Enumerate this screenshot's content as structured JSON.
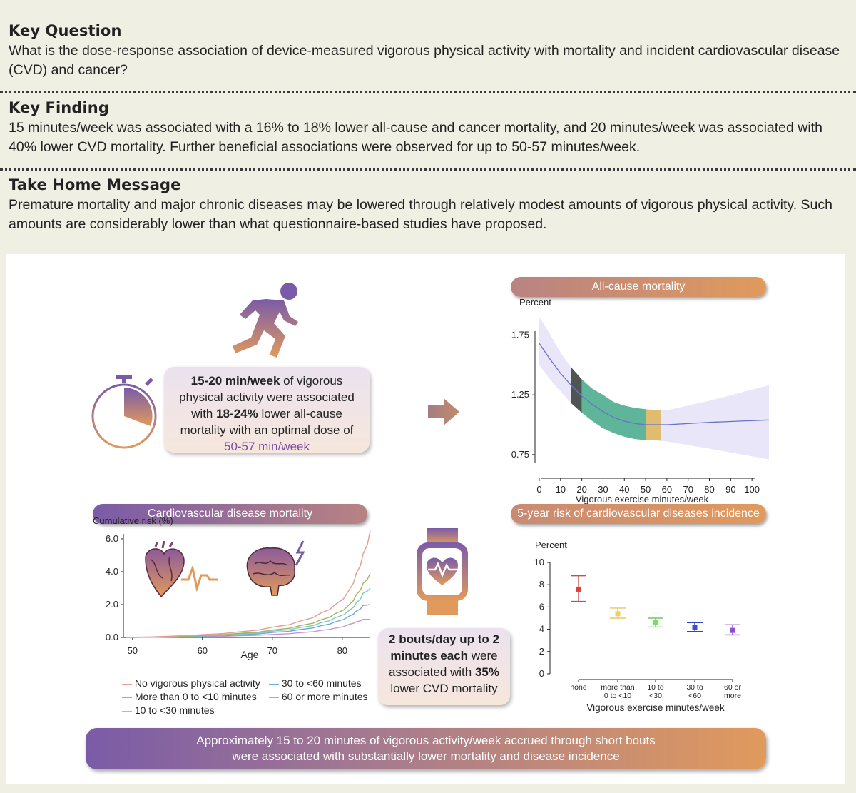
{
  "key_question": {
    "heading": "Key Question",
    "text": "What is the dose-response association of device-measured vigorous physical activity with mortality and incident cardiovascular disease (CVD) and cancer?"
  },
  "key_finding": {
    "heading": "Key Finding",
    "text": "15 minutes/week was associated with a 16% to 18% lower all-cause and cancer mortality, and 20 minutes/week was associated with 40% lower CVD mortality. Further beneficial associations were observed for up to 50-57 minutes/week."
  },
  "take_home": {
    "heading": "Take Home Message",
    "text": "Premature mortality and major chronic diseases may be lowered through relatively modest amounts of vigorous physical activity. Such amounts are considerably lower than what questionnaire-based studies have proposed."
  },
  "summary_box": {
    "p1": "15-20 min/week",
    "p2": " of vigorous physical activity were associated with ",
    "p3": "18-24%",
    "p4": " lower all-cause mortality with an optimal dose of ",
    "p5": "50-57 min/week"
  },
  "bouts_box": {
    "p1": "2 bouts/day up to 2 minutes each",
    "p2": " were associated with ",
    "p3": "35%",
    "p4": " lower CVD mortality"
  },
  "bottom_message": {
    "line1": "Approximately 15 to 20 minutes of vigorous activity/week accrued through short bouts",
    "line2": "were associated with substantially lower mortality and disease incidence"
  },
  "colors": {
    "purple": "#7a5ba7",
    "orange": "#e19a5c",
    "green": "#5fb59a",
    "gold": "#e0bc6f",
    "dark": "#4e5553",
    "band": "#e8e6f8"
  },
  "chart_data": [
    {
      "type": "line",
      "title": "All-cause mortality",
      "ylabel": "Percent",
      "xlabel": "Vigorous exercise minutes/week",
      "x_ticks": [
        0,
        10,
        20,
        30,
        40,
        50,
        60,
        70,
        80,
        90,
        100
      ],
      "y_ticks": [
        "0.75",
        "1.25",
        "1.75"
      ],
      "xlim": [
        0,
        108
      ],
      "ylim": [
        0.6,
        1.95
      ],
      "series": [
        {
          "name": "estimate",
          "x": [
            0,
            5,
            10,
            15,
            20,
            25,
            30,
            35,
            40,
            45,
            50,
            55,
            60,
            80,
            108
          ],
          "values": [
            1.68,
            1.55,
            1.43,
            1.33,
            1.24,
            1.17,
            1.11,
            1.06,
            1.03,
            1.01,
            1.0,
            1.0,
            1.0,
            1.02,
            1.04
          ],
          "lower": [
            1.5,
            1.38,
            1.28,
            1.18,
            1.1,
            1.03,
            0.97,
            0.93,
            0.9,
            0.88,
            0.87,
            0.87,
            0.86,
            0.8,
            0.71
          ],
          "upper": [
            1.9,
            1.76,
            1.6,
            1.48,
            1.38,
            1.3,
            1.25,
            1.19,
            1.16,
            1.14,
            1.13,
            1.12,
            1.12,
            1.2,
            1.33
          ]
        }
      ],
      "highlights": [
        {
          "name": "15-20 min",
          "from": 15,
          "to": 20
        },
        {
          "name": "20-50 min",
          "from": 20,
          "to": 50
        },
        {
          "name": "50-57 min",
          "from": 50,
          "to": 57
        }
      ]
    },
    {
      "type": "line",
      "title": "Cardiovascular disease mortality",
      "ylabel": "Cumulative risk (%)",
      "xlabel": "Age",
      "x_ticks": [
        50,
        60,
        70,
        80
      ],
      "y_ticks": [
        "0.0",
        "2.0",
        "4.0",
        "6.0"
      ],
      "xlim": [
        49,
        84
      ],
      "ylim": [
        0,
        6.3
      ],
      "x": [
        49,
        55,
        60,
        65,
        70,
        74,
        77,
        79,
        81,
        82,
        83,
        84
      ],
      "series": [
        {
          "name": "No vigorous physical activity",
          "color": "#e49a96",
          "values": [
            0,
            0.07,
            0.17,
            0.33,
            0.62,
            1.0,
            1.5,
            2.0,
            2.9,
            3.9,
            5.1,
            6.5
          ]
        },
        {
          "name": "More than 0 to <10 minutes",
          "color": "#a3b461",
          "values": [
            0,
            0.05,
            0.12,
            0.24,
            0.45,
            0.72,
            1.08,
            1.45,
            2.0,
            2.6,
            3.3,
            3.9
          ]
        },
        {
          "name": "10 to <30 minutes",
          "color": "#7fcdb9",
          "values": [
            0,
            0.04,
            0.1,
            0.2,
            0.38,
            0.6,
            0.9,
            1.2,
            1.65,
            2.1,
            2.7,
            3.0
          ]
        },
        {
          "name": "30 to <60 minutes",
          "color": "#6aa8dc",
          "values": [
            0,
            0.03,
            0.08,
            0.16,
            0.3,
            0.48,
            0.72,
            0.95,
            1.3,
            1.6,
            1.95,
            2.0
          ]
        },
        {
          "name": "60 or more minutes",
          "color": "#c793d6",
          "values": [
            0,
            0.02,
            0.05,
            0.1,
            0.18,
            0.29,
            0.43,
            0.57,
            0.8,
            0.95,
            1.1,
            1.1
          ]
        }
      ]
    },
    {
      "type": "scatter",
      "title": "5-year risk of cardiovascular diseases incidence",
      "ylabel": "Percent",
      "xlabel": "Vigorous exercise minutes/week",
      "y_ticks": [
        "0",
        "2",
        "4",
        "6",
        "8",
        "10"
      ],
      "ylim": [
        0,
        10
      ],
      "categories": [
        {
          "l1": "none",
          "l2": ""
        },
        {
          "l1": "more than",
          "l2": "0 to <10"
        },
        {
          "l1": "10 to",
          "l2": "<30"
        },
        {
          "l1": "30 to",
          "l2": "<60"
        },
        {
          "l1": "60 or",
          "l2": "more"
        }
      ],
      "points": [
        {
          "value": 7.6,
          "low": 6.5,
          "high": 8.8,
          "color": "#d6423f",
          "cap": "#c9504a"
        },
        {
          "value": 5.4,
          "low": 5.0,
          "high": 5.9,
          "color": "#f0d35c",
          "cap": "#e8c860"
        },
        {
          "value": 4.6,
          "low": 4.2,
          "high": 5.0,
          "color": "#7ed86b",
          "cap": "#6dcc5c"
        },
        {
          "value": 4.2,
          "low": 3.8,
          "high": 4.6,
          "color": "#3a4fd0",
          "cap": "#3244bf"
        },
        {
          "value": 3.9,
          "low": 3.5,
          "high": 4.4,
          "color": "#8c4fd0",
          "cap": "#8a55c4"
        }
      ]
    }
  ]
}
